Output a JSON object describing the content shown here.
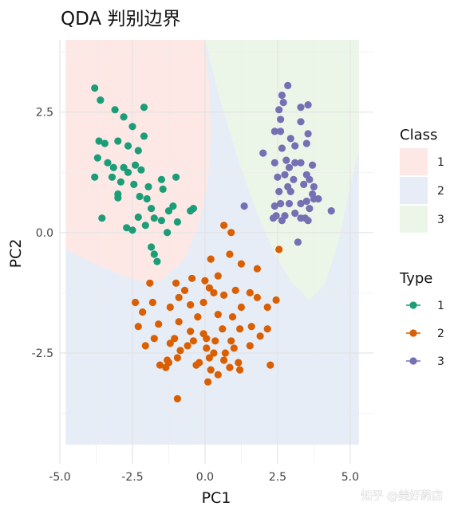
{
  "chart_data": {
    "type": "scatter",
    "title": "QDA 判别边界",
    "xlabel": "PC1",
    "ylabel": "PC2",
    "xlim": [
      -5.0,
      5.8
    ],
    "ylim": [
      -4.8,
      4.0
    ],
    "x_ticks": [
      -5.0,
      -2.5,
      0.0,
      2.5,
      5.0
    ],
    "x_tick_labels": [
      "-5.0",
      "-2.5",
      "0.0",
      "2.5",
      "5.0"
    ],
    "y_ticks": [
      -2.5,
      0.0,
      2.5
    ],
    "y_tick_labels": [
      "-2.5",
      "0.0",
      "2.5"
    ],
    "grid": true,
    "background": {
      "title": "Class",
      "grid_x_range": [
        -4.8,
        5.3
      ],
      "grid_y_range": [
        -4.4,
        4.0
      ],
      "regions": [
        {
          "label": "1",
          "color": "#fde8e6"
        },
        {
          "label": "2",
          "color": "#e6edf6"
        },
        {
          "label": "3",
          "color": "#ecf6e8"
        }
      ],
      "boundary_1_2": [
        [
          -4.8,
          -0.35
        ],
        [
          -3.8,
          -0.65
        ],
        [
          -2.8,
          -0.9
        ],
        [
          -2.0,
          -1.05
        ],
        [
          -1.5,
          -1.0
        ],
        [
          -0.7,
          -0.55
        ],
        [
          -0.2,
          0.2
        ],
        [
          0.1,
          1.0
        ],
        [
          0.2,
          2.0
        ],
        [
          0.15,
          3.0
        ],
        [
          0.0,
          4.0
        ]
      ],
      "boundary_2_3": [
        [
          0.0,
          4.0
        ],
        [
          0.5,
          2.8
        ],
        [
          1.2,
          1.4
        ],
        [
          1.8,
          0.4
        ],
        [
          2.4,
          -0.45
        ],
        [
          3.0,
          -1.05
        ],
        [
          3.6,
          -1.4
        ],
        [
          4.1,
          -1.1
        ],
        [
          4.6,
          -0.2
        ],
        [
          5.0,
          1.0
        ],
        [
          5.3,
          1.7
        ]
      ]
    },
    "legend": {
      "title": "Type",
      "placement": "right",
      "entries": [
        "1",
        "2",
        "3"
      ]
    },
    "series": [
      {
        "name": "1",
        "color": "#1b9e77",
        "points": [
          [
            -3.8,
            3.0
          ],
          [
            -3.6,
            2.75
          ],
          [
            -3.1,
            2.55
          ],
          [
            -2.8,
            2.4
          ],
          [
            -2.1,
            2.6
          ],
          [
            -2.5,
            2.2
          ],
          [
            -2.1,
            2.0
          ],
          [
            -3.65,
            1.9
          ],
          [
            -3.45,
            1.85
          ],
          [
            -3.0,
            1.9
          ],
          [
            -2.65,
            1.8
          ],
          [
            -2.3,
            1.7
          ],
          [
            -3.7,
            1.55
          ],
          [
            -3.35,
            1.45
          ],
          [
            -3.15,
            1.35
          ],
          [
            -2.8,
            1.35
          ],
          [
            -2.65,
            1.25
          ],
          [
            -2.4,
            1.4
          ],
          [
            -2.2,
            1.3
          ],
          [
            -3.8,
            1.15
          ],
          [
            -3.2,
            1.15
          ],
          [
            -2.9,
            1.05
          ],
          [
            -2.45,
            1.0
          ],
          [
            -1.5,
            1.1
          ],
          [
            -1.0,
            1.15
          ],
          [
            -1.95,
            0.95
          ],
          [
            -1.45,
            0.9
          ],
          [
            -3.0,
            0.8
          ],
          [
            -2.25,
            0.75
          ],
          [
            -2.0,
            0.7
          ],
          [
            -3.0,
            0.72
          ],
          [
            -1.85,
            0.5
          ],
          [
            -1.1,
            0.55
          ],
          [
            -1.25,
            0.45
          ],
          [
            -0.4,
            0.5
          ],
          [
            -3.55,
            0.3
          ],
          [
            -2.3,
            0.32
          ],
          [
            -1.75,
            0.3
          ],
          [
            -1.5,
            0.25
          ],
          [
            -0.95,
            0.22
          ],
          [
            -0.5,
            0.45
          ],
          [
            -2.7,
            0.1
          ],
          [
            -2.05,
            0.15
          ],
          [
            -2.5,
            0.05
          ],
          [
            -1.3,
            0.0
          ],
          [
            -1.85,
            -0.3
          ],
          [
            -1.75,
            -0.45
          ],
          [
            -1.65,
            -0.6
          ]
        ]
      },
      {
        "name": "2",
        "color": "#d95f02",
        "points": [
          [
            0.65,
            0.15
          ],
          [
            0.9,
            0.0
          ],
          [
            0.2,
            -0.55
          ],
          [
            0.85,
            -0.45
          ],
          [
            1.25,
            -0.65
          ],
          [
            1.8,
            -0.75
          ],
          [
            0.45,
            -0.9
          ],
          [
            0.0,
            -1.0
          ],
          [
            -0.45,
            -0.95
          ],
          [
            -1.0,
            -1.05
          ],
          [
            -1.9,
            -1.05
          ],
          [
            -2.4,
            -1.45
          ],
          [
            -1.8,
            -1.45
          ],
          [
            -0.9,
            -1.35
          ],
          [
            -0.5,
            -1.5
          ],
          [
            0.15,
            -1.15
          ],
          [
            0.3,
            -1.25
          ],
          [
            0.65,
            -1.3
          ],
          [
            1.05,
            -1.2
          ],
          [
            1.55,
            -1.25
          ],
          [
            1.8,
            -1.35
          ],
          [
            2.45,
            -1.4
          ],
          [
            2.15,
            -1.55
          ],
          [
            1.25,
            -1.55
          ],
          [
            -0.05,
            -1.45
          ],
          [
            -1.2,
            -1.55
          ],
          [
            -2.15,
            -1.65
          ],
          [
            -0.9,
            -1.85
          ],
          [
            -0.25,
            -1.75
          ],
          [
            0.45,
            -1.7
          ],
          [
            0.95,
            -1.75
          ],
          [
            1.6,
            -1.95
          ],
          [
            -1.6,
            -1.9
          ],
          [
            -0.5,
            -2.05
          ],
          [
            -0.05,
            -2.1
          ],
          [
            0.6,
            -2.0
          ],
          [
            1.2,
            -2.0
          ],
          [
            -2.3,
            -1.95
          ],
          [
            -1.05,
            -2.2
          ],
          [
            -0.4,
            -2.25
          ],
          [
            0.35,
            -2.25
          ],
          [
            0.9,
            -2.25
          ],
          [
            1.55,
            -2.35
          ],
          [
            1.9,
            -2.15
          ],
          [
            -1.75,
            -2.2
          ],
          [
            -1.2,
            -2.3
          ],
          [
            -0.6,
            -2.35
          ],
          [
            0.05,
            -2.4
          ],
          [
            0.7,
            -2.5
          ],
          [
            -2.05,
            -2.35
          ],
          [
            -0.85,
            -2.45
          ],
          [
            0.3,
            -2.5
          ],
          [
            1.0,
            -2.4
          ],
          [
            -0.95,
            -2.6
          ],
          [
            0.15,
            -2.6
          ],
          [
            0.65,
            -2.65
          ],
          [
            1.15,
            -2.7
          ],
          [
            -1.25,
            -2.7
          ],
          [
            -0.3,
            -2.75
          ],
          [
            0.45,
            -2.95
          ],
          [
            -1.35,
            -2.8
          ],
          [
            -0.2,
            -2.7
          ],
          [
            0.2,
            -2.85
          ],
          [
            0.85,
            -2.8
          ],
          [
            1.2,
            -2.85
          ],
          [
            2.15,
            -2.0
          ],
          [
            2.25,
            -2.75
          ],
          [
            0.1,
            -3.1
          ],
          [
            -1.3,
            -2.65
          ],
          [
            0.05,
            -2.2
          ],
          [
            -0.95,
            -3.45
          ],
          [
            2.55,
            -0.35
          ],
          [
            -1.55,
            -2.75
          ],
          [
            -0.7,
            -1.2
          ]
        ]
      },
      {
        "name": "3",
        "color": "#7570b3",
        "points": [
          [
            2.85,
            3.05
          ],
          [
            2.65,
            2.85
          ],
          [
            2.7,
            2.7
          ],
          [
            2.55,
            2.55
          ],
          [
            3.3,
            2.6
          ],
          [
            3.55,
            2.65
          ],
          [
            2.6,
            2.35
          ],
          [
            2.4,
            2.1
          ],
          [
            2.6,
            2.1
          ],
          [
            2.95,
            1.95
          ],
          [
            3.1,
            1.8
          ],
          [
            2.65,
            1.75
          ],
          [
            3.5,
            1.85
          ],
          [
            3.55,
            2.05
          ],
          [
            3.3,
            2.3
          ],
          [
            2.0,
            1.65
          ],
          [
            2.4,
            1.45
          ],
          [
            2.8,
            1.5
          ],
          [
            3.1,
            1.45
          ],
          [
            2.9,
            1.35
          ],
          [
            3.3,
            1.45
          ],
          [
            3.7,
            1.4
          ],
          [
            2.75,
            1.2
          ],
          [
            2.5,
            1.15
          ],
          [
            3.5,
            1.2
          ],
          [
            3.05,
            1.1
          ],
          [
            2.85,
            0.95
          ],
          [
            3.6,
            1.1
          ],
          [
            3.4,
            1.0
          ],
          [
            3.75,
            0.95
          ],
          [
            2.55,
            0.85
          ],
          [
            2.95,
            0.85
          ],
          [
            3.7,
            0.8
          ],
          [
            1.35,
            0.55
          ],
          [
            2.4,
            0.55
          ],
          [
            2.6,
            0.6
          ],
          [
            2.9,
            0.6
          ],
          [
            3.3,
            0.6
          ],
          [
            3.5,
            0.65
          ],
          [
            3.75,
            0.7
          ],
          [
            3.9,
            0.7
          ],
          [
            3.6,
            0.5
          ],
          [
            4.35,
            0.45
          ],
          [
            2.45,
            0.35
          ],
          [
            2.75,
            0.35
          ],
          [
            3.1,
            0.4
          ],
          [
            3.3,
            0.3
          ],
          [
            3.45,
            0.3
          ],
          [
            2.35,
            0.3
          ],
          [
            2.65,
            0.25
          ],
          [
            3.55,
            0.25
          ],
          [
            3.2,
            -0.2
          ]
        ]
      }
    ]
  },
  "watermark": "知乎 @美好药店"
}
